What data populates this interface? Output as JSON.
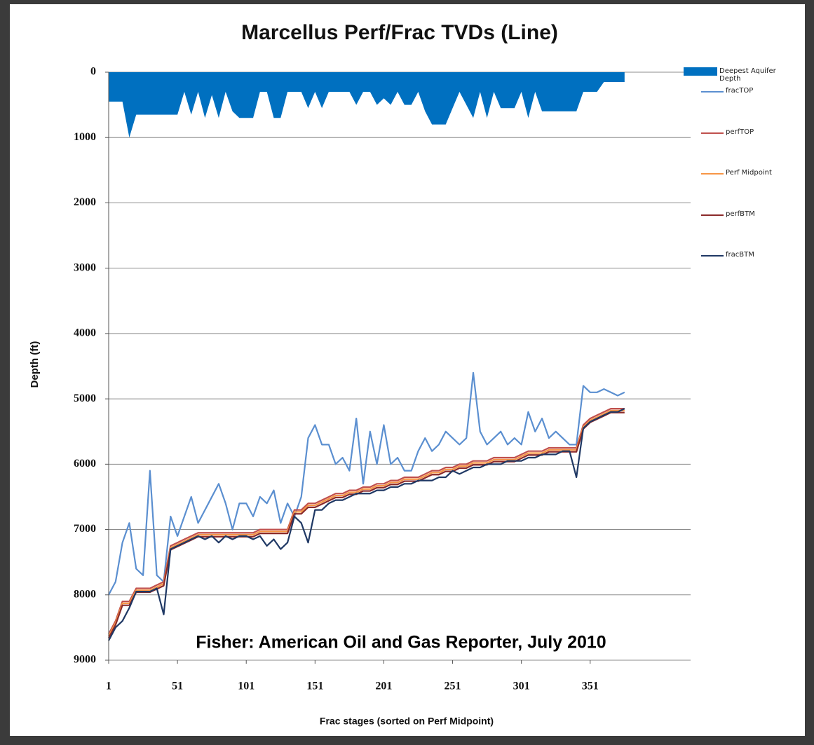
{
  "chart_data": {
    "type": "line",
    "title": "Marcellus Perf/Frac TVDs (Line)",
    "x_label": "Frac stages (sorted on Perf Midpoint)",
    "y_label": "Depth (ft)",
    "annotation": "Fisher: American Oil and Gas Reporter, July 2010",
    "x": [
      1,
      6,
      11,
      16,
      21,
      26,
      31,
      36,
      41,
      46,
      51,
      56,
      61,
      66,
      71,
      76,
      81,
      86,
      91,
      96,
      101,
      106,
      111,
      116,
      121,
      126,
      131,
      136,
      141,
      146,
      151,
      156,
      161,
      166,
      171,
      176,
      181,
      186,
      191,
      196,
      201,
      206,
      211,
      216,
      221,
      226,
      231,
      236,
      241,
      246,
      251,
      256,
      261,
      266,
      271,
      276,
      281,
      286,
      291,
      296,
      301,
      306,
      311,
      316,
      321,
      326,
      331,
      336,
      341,
      346,
      351,
      356,
      361,
      366,
      371,
      376
    ],
    "xlim": [
      1,
      424
    ],
    "xticks": [
      1,
      51,
      101,
      151,
      201,
      251,
      301,
      351
    ],
    "ylim": [
      0,
      9000
    ],
    "yticks": [
      0,
      1000,
      2000,
      3000,
      4000,
      5000,
      6000,
      7000,
      8000,
      9000
    ],
    "y_reversed": true,
    "grid": true,
    "legend": "right",
    "series": [
      {
        "name": "Deepest Aquifer Depth",
        "color": "#0070c0",
        "style": "area",
        "values": [
          450,
          450,
          450,
          1000,
          650,
          650,
          650,
          650,
          650,
          650,
          650,
          300,
          650,
          300,
          700,
          350,
          700,
          300,
          600,
          700,
          700,
          700,
          300,
          300,
          700,
          700,
          300,
          300,
          300,
          550,
          300,
          550,
          300,
          300,
          300,
          300,
          500,
          300,
          300,
          500,
          400,
          500,
          300,
          500,
          500,
          300,
          600,
          800,
          800,
          800,
          550,
          300,
          500,
          700,
          300,
          700,
          300,
          550,
          550,
          550,
          300,
          700,
          300,
          600,
          600,
          600,
          600,
          600,
          600,
          300,
          300,
          300,
          150,
          150,
          150,
          150
        ]
      },
      {
        "name": "fracTOP",
        "color": "#5b8fd0",
        "style": "line",
        "values": [
          8000,
          7800,
          7200,
          6900,
          7600,
          7700,
          6100,
          7700,
          7800,
          6800,
          7100,
          6800,
          6500,
          6900,
          6700,
          6500,
          6300,
          6600,
          7000,
          6600,
          6600,
          6800,
          6500,
          6600,
          6400,
          6900,
          6600,
          6800,
          6500,
          5600,
          5400,
          5700,
          5700,
          6000,
          5900,
          6100,
          5300,
          6300,
          5500,
          6000,
          5400,
          6000,
          5900,
          6100,
          6100,
          5800,
          5600,
          5800,
          5700,
          5500,
          5600,
          5700,
          5600,
          4600,
          5500,
          5700,
          5600,
          5500,
          5700,
          5600,
          5700,
          5200,
          5500,
          5300,
          5600,
          5500,
          5600,
          5700,
          5700,
          4800,
          4900,
          4900,
          4850,
          4900,
          4950,
          4900
        ]
      },
      {
        "name": "perfTOP",
        "color": "#c0504d",
        "style": "line",
        "values": [
          8600,
          8400,
          8100,
          8100,
          7900,
          7900,
          7900,
          7850,
          7800,
          7250,
          7200,
          7150,
          7100,
          7050,
          7050,
          7050,
          7050,
          7050,
          7050,
          7050,
          7050,
          7050,
          7000,
          7000,
          7000,
          7000,
          7000,
          6700,
          6700,
          6600,
          6600,
          6550,
          6500,
          6450,
          6450,
          6400,
          6400,
          6350,
          6350,
          6300,
          6300,
          6250,
          6250,
          6200,
          6200,
          6200,
          6150,
          6100,
          6100,
          6050,
          6050,
          6000,
          6000,
          5950,
          5950,
          5950,
          5900,
          5900,
          5900,
          5900,
          5850,
          5800,
          5800,
          5800,
          5750,
          5750,
          5750,
          5750,
          5750,
          5400,
          5300,
          5250,
          5200,
          5150,
          5150,
          5150
        ]
      },
      {
        "name": "Perf Midpoint",
        "color": "#f79646",
        "style": "line",
        "values": [
          8630,
          8430,
          8130,
          8130,
          7930,
          7930,
          7930,
          7880,
          7830,
          7280,
          7230,
          7180,
          7130,
          7080,
          7080,
          7080,
          7080,
          7080,
          7080,
          7080,
          7080,
          7080,
          7030,
          7030,
          7030,
          7030,
          7030,
          6730,
          6730,
          6630,
          6630,
          6580,
          6530,
          6480,
          6480,
          6430,
          6430,
          6380,
          6380,
          6330,
          6330,
          6280,
          6280,
          6230,
          6230,
          6230,
          6180,
          6130,
          6130,
          6080,
          6080,
          6030,
          6030,
          5980,
          5980,
          5980,
          5930,
          5930,
          5930,
          5930,
          5880,
          5830,
          5830,
          5830,
          5780,
          5780,
          5780,
          5780,
          5780,
          5430,
          5330,
          5280,
          5230,
          5180,
          5180,
          5180
        ]
      },
      {
        "name": "perfBTM",
        "color": "#8b2a2a",
        "style": "line",
        "values": [
          8660,
          8460,
          8160,
          8160,
          7960,
          7960,
          7960,
          7910,
          7860,
          7310,
          7260,
          7210,
          7160,
          7110,
          7110,
          7110,
          7110,
          7110,
          7110,
          7110,
          7110,
          7110,
          7060,
          7060,
          7060,
          7060,
          7060,
          6760,
          6760,
          6660,
          6660,
          6610,
          6560,
          6510,
          6510,
          6460,
          6460,
          6410,
          6410,
          6360,
          6360,
          6310,
          6310,
          6260,
          6260,
          6260,
          6210,
          6160,
          6160,
          6110,
          6110,
          6060,
          6060,
          6010,
          6010,
          6010,
          5960,
          5960,
          5960,
          5960,
          5910,
          5860,
          5860,
          5860,
          5810,
          5810,
          5810,
          5810,
          5810,
          5460,
          5360,
          5310,
          5260,
          5210,
          5210,
          5210
        ]
      },
      {
        "name": "fracBTM",
        "color": "#1f3864",
        "style": "line",
        "values": [
          8700,
          8500,
          8400,
          8200,
          7950,
          7950,
          7950,
          7900,
          8300,
          7300,
          7250,
          7200,
          7150,
          7100,
          7150,
          7100,
          7200,
          7100,
          7150,
          7100,
          7100,
          7150,
          7100,
          7250,
          7150,
          7300,
          7200,
          6800,
          6900,
          7200,
          6700,
          6700,
          6600,
          6550,
          6550,
          6500,
          6450,
          6450,
          6450,
          6400,
          6400,
          6350,
          6350,
          6300,
          6300,
          6250,
          6250,
          6250,
          6200,
          6200,
          6100,
          6150,
          6100,
          6050,
          6050,
          6000,
          6000,
          6000,
          5950,
          5950,
          5950,
          5900,
          5900,
          5850,
          5850,
          5850,
          5800,
          5800,
          6200,
          5450,
          5350,
          5300,
          5250,
          5200,
          5200,
          5150
        ]
      }
    ]
  }
}
